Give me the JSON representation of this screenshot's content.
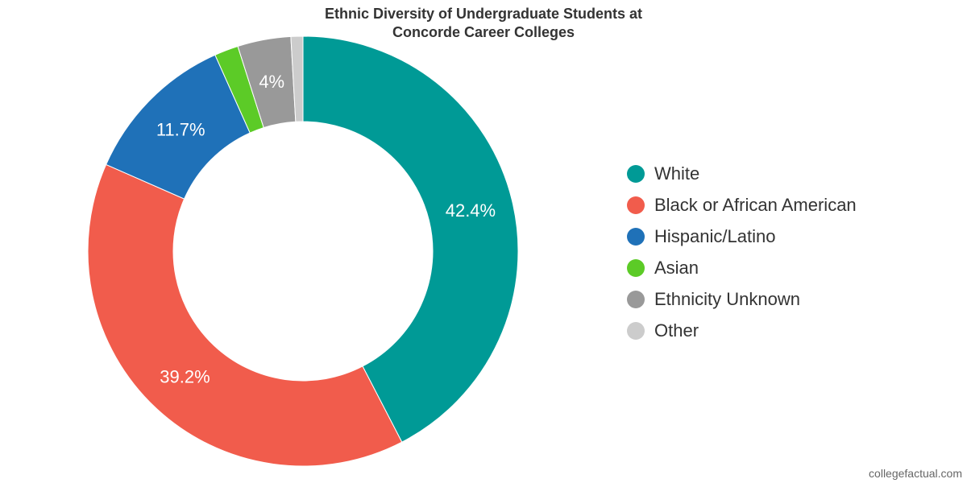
{
  "chart_data": {
    "type": "pie",
    "variant": "donut",
    "title": [
      "Ethnic Diversity of Undergraduate Students at",
      "Concorde Career Colleges"
    ],
    "slices": [
      {
        "name": "White",
        "value": 42.4,
        "label": "42.4%",
        "color": "#009a96"
      },
      {
        "name": "Black or African American",
        "value": 39.2,
        "label": "39.2%",
        "color": "#f15c4c"
      },
      {
        "name": "Hispanic/Latino",
        "value": 11.7,
        "label": "11.7%",
        "color": "#1f71b8"
      },
      {
        "name": "Asian",
        "value": 1.8,
        "label": "",
        "color": "#5ccb27"
      },
      {
        "name": "Ethnicity Unknown",
        "value": 4.0,
        "label": "4%",
        "color": "#999999"
      },
      {
        "name": "Other",
        "value": 0.9,
        "label": "",
        "color": "#cccccc"
      }
    ],
    "legend_position": "right"
  },
  "footer": {
    "credit": "collegefactual.com"
  }
}
